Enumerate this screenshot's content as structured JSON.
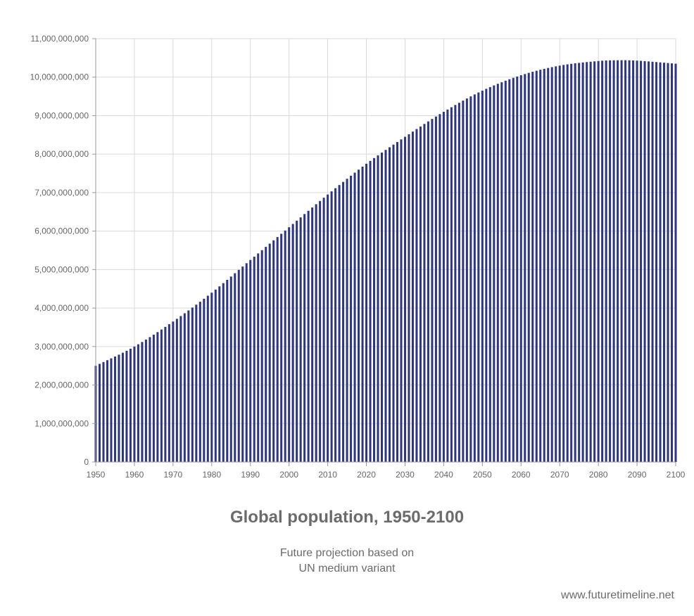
{
  "chart_data": {
    "type": "bar",
    "title": "Global population, 1950-2100",
    "subtitle_lines": [
      "Future projection based on",
      "UN medium variant"
    ],
    "credit": "www.futuretimeline.net",
    "bar_color": "#2e3585",
    "grid": true,
    "xlim": [
      1950,
      2100
    ],
    "ylim": [
      0,
      11000000000
    ],
    "x_ticks": [
      "1950",
      "1960",
      "1970",
      "1980",
      "1990",
      "2000",
      "2010",
      "2020",
      "2030",
      "2040",
      "2050",
      "2060",
      "2070",
      "2080",
      "2090",
      "2100"
    ],
    "y_ticks": [
      "0",
      "1,000,000,000",
      "2,000,000,000",
      "3,000,000,000",
      "4,000,000,000",
      "5,000,000,000",
      "6,000,000,000",
      "7,000,000,000",
      "8,000,000,000",
      "9,000,000,000",
      "10,000,000,000",
      "11,000,000,000"
    ],
    "anchor_years": [
      1950,
      1960,
      1970,
      1980,
      1990,
      2000,
      2010,
      2020,
      2030,
      2040,
      2050,
      2060,
      2070,
      2080,
      2085,
      2090,
      2100
    ],
    "anchor_values": [
      2500000000,
      3000000000,
      3650000000,
      4400000000,
      5250000000,
      6100000000,
      6950000000,
      7750000000,
      8450000000,
      9100000000,
      9650000000,
      10050000000,
      10300000000,
      10420000000,
      10440000000,
      10430000000,
      10350000000
    ]
  }
}
